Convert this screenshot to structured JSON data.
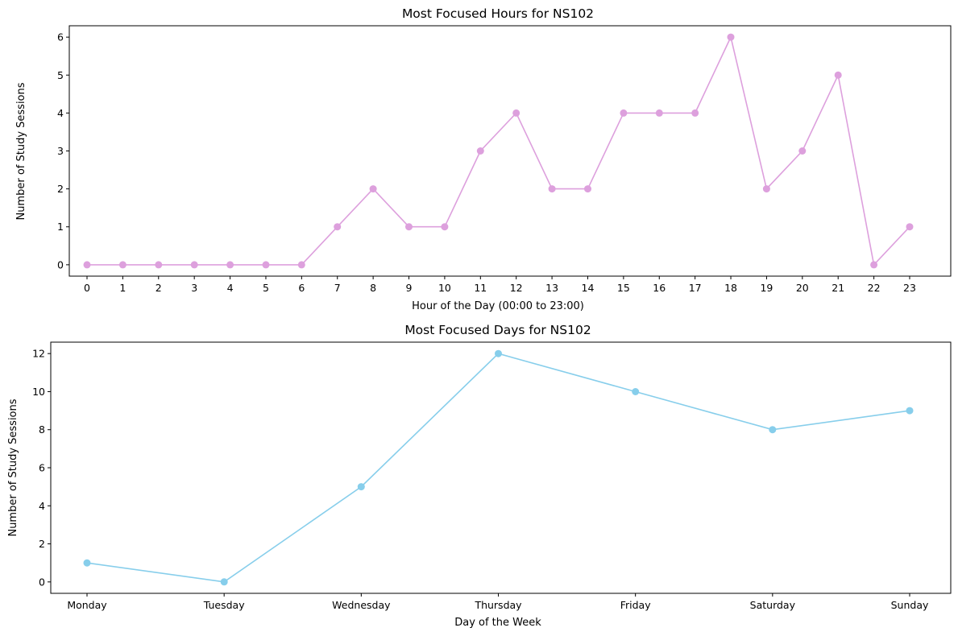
{
  "chart_data": [
    {
      "type": "line",
      "title": "Most Focused Hours for NS102",
      "xlabel": "Hour of the Day (00:00 to 23:00)",
      "ylabel": "Number of Study Sessions",
      "categories": [
        "0",
        "1",
        "2",
        "3",
        "4",
        "5",
        "6",
        "7",
        "8",
        "9",
        "10",
        "11",
        "12",
        "13",
        "14",
        "15",
        "16",
        "17",
        "18",
        "19",
        "20",
        "21",
        "22",
        "23"
      ],
      "values": [
        0,
        0,
        0,
        0,
        0,
        0,
        0,
        1,
        2,
        1,
        1,
        3,
        4,
        2,
        2,
        4,
        4,
        4,
        6,
        2,
        3,
        5,
        0,
        1
      ],
      "yticks": [
        0,
        1,
        2,
        3,
        4,
        5,
        6
      ],
      "ylim": [
        -0.3,
        6.3
      ],
      "color": "#dda0dd",
      "marker": "circle",
      "grid": false,
      "legend": "none"
    },
    {
      "type": "line",
      "title": "Most Focused Days for NS102",
      "xlabel": "Day of the Week",
      "ylabel": "Number of Study Sessions",
      "categories": [
        "Monday",
        "Tuesday",
        "Wednesday",
        "Thursday",
        "Friday",
        "Saturday",
        "Sunday"
      ],
      "values": [
        1,
        0,
        5,
        12,
        10,
        8,
        9
      ],
      "yticks": [
        0,
        2,
        4,
        6,
        8,
        10,
        12
      ],
      "ylim": [
        -0.6,
        12.6
      ],
      "color": "#87ceeb",
      "marker": "circle",
      "grid": false,
      "legend": "none"
    }
  ]
}
